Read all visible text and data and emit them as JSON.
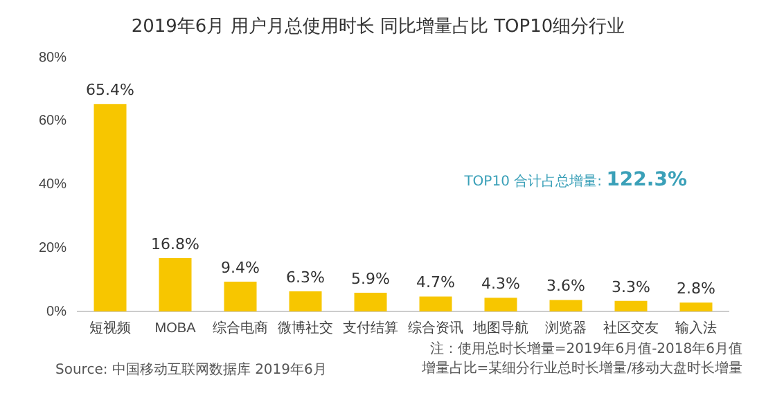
{
  "chart_data": {
    "type": "bar",
    "title": "2019年6月 用户月总使用时长 同比增量占比 TOP10细分行业",
    "categories": [
      "短视频",
      "MOBA",
      "综合电商",
      "微博社交",
      "支付结算",
      "综合资讯",
      "地图导航",
      "浏览器",
      "社区交友",
      "输入法"
    ],
    "values": [
      65.4,
      16.8,
      9.4,
      6.3,
      5.9,
      4.7,
      4.3,
      3.6,
      3.3,
      2.8
    ],
    "value_labels": [
      "65.4%",
      "16.8%",
      "9.4%",
      "6.3%",
      "5.9%",
      "4.7%",
      "4.3%",
      "3.6%",
      "3.3%",
      "2.8%"
    ],
    "color": "#f7c600",
    "ylim": [
      0,
      80
    ],
    "yticks": [
      {
        "value": 0,
        "label": "0%"
      },
      {
        "value": 20,
        "label": "20%"
      },
      {
        "value": 40,
        "label": "40%"
      },
      {
        "value": 60,
        "label": "60%"
      },
      {
        "value": 80,
        "label": "80%"
      }
    ],
    "grid": false,
    "annotations": [
      "TOP10 合计占总增量:",
      "122.3%",
      "注：使用总时长增量=2019年6月值-2018年6月值",
      "增量占比=某细分行业总时长增量/移动大盘时长增量",
      "Source: 中国移动互联网数据库 2019年6月"
    ]
  }
}
